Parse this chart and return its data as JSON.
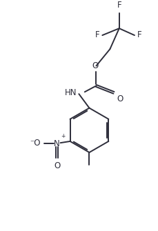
{
  "bg_color": "#ffffff",
  "line_color": "#2d2d3a",
  "line_width": 1.4,
  "font_size": 8.5,
  "fig_width": 2.3,
  "fig_height": 3.35,
  "dpi": 100,
  "xlim": [
    0,
    10
  ],
  "ylim": [
    0,
    14.5
  ]
}
